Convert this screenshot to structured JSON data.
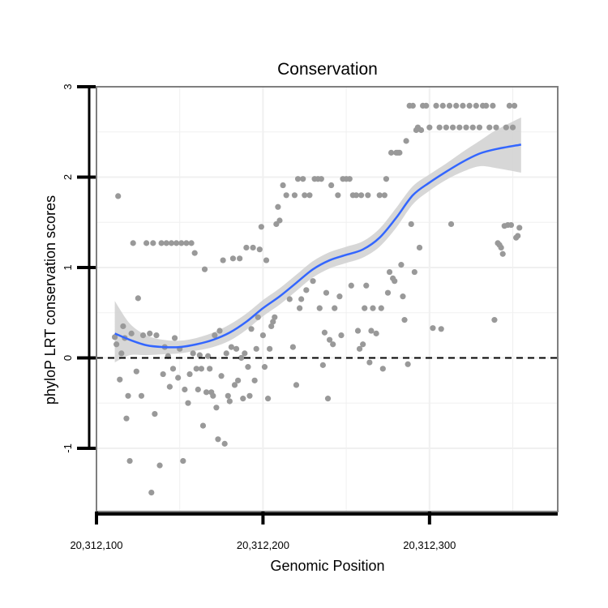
{
  "chart_data": {
    "type": "scatter",
    "title": "Conservation",
    "xlabel": "Genomic Position",
    "ylabel": "phyloP LRT conservation scores",
    "xlim": [
      20312100,
      20312377
    ],
    "ylim": [
      -1.7,
      3.0
    ],
    "x_ticks": [
      20312100,
      20312200,
      20312300
    ],
    "x_tick_labels": [
      "20,312,100",
      "20,312,200",
      "20,312,300"
    ],
    "y_ticks": [
      -1,
      0,
      1,
      2,
      3
    ],
    "y_tick_labels": [
      "-1",
      "0",
      "1",
      "2",
      "3"
    ],
    "reference_line": {
      "y": 0,
      "style": "dashed"
    },
    "grid": true,
    "colors": {
      "points": "#999999",
      "smooth_line": "#3366ff",
      "confidence_band": "#d3d3d3",
      "panel_border": "#7f7f7f",
      "grid": "#f0f0f0"
    },
    "points": [
      [
        20312111,
        0.23
      ],
      [
        20312112,
        0.15
      ],
      [
        20312113,
        1.79
      ],
      [
        20312114,
        -0.24
      ],
      [
        20312115,
        0.05
      ],
      [
        20312116,
        0.35
      ],
      [
        20312117,
        0.22
      ],
      [
        20312118,
        -0.67
      ],
      [
        20312119,
        -0.42
      ],
      [
        20312120,
        -1.14
      ],
      [
        20312121,
        0.27
      ],
      [
        20312122,
        1.27
      ],
      [
        20312124,
        -0.15
      ],
      [
        20312125,
        0.66
      ],
      [
        20312127,
        -0.42
      ],
      [
        20312128,
        0.25
      ],
      [
        20312130,
        1.27
      ],
      [
        20312132,
        0.27
      ],
      [
        20312133,
        -1.49
      ],
      [
        20312134,
        1.27
      ],
      [
        20312135,
        -0.62
      ],
      [
        20312136,
        0.25
      ],
      [
        20312138,
        -1.19
      ],
      [
        20312139,
        1.27
      ],
      [
        20312140,
        -0.18
      ],
      [
        20312141,
        0.12
      ],
      [
        20312142,
        1.27
      ],
      [
        20312143,
        0.02
      ],
      [
        20312144,
        -0.32
      ],
      [
        20312145,
        1.27
      ],
      [
        20312146,
        -0.12
      ],
      [
        20312147,
        0.22
      ],
      [
        20312148,
        1.27
      ],
      [
        20312149,
        -0.22
      ],
      [
        20312150,
        0.1
      ],
      [
        20312151,
        1.27
      ],
      [
        20312152,
        -1.14
      ],
      [
        20312153,
        -0.35
      ],
      [
        20312154,
        1.27
      ],
      [
        20312155,
        -0.5
      ],
      [
        20312156,
        -0.18
      ],
      [
        20312157,
        1.27
      ],
      [
        20312158,
        0.05
      ],
      [
        20312159,
        1.16
      ],
      [
        20312160,
        -0.12
      ],
      [
        20312161,
        -0.35
      ],
      [
        20312162,
        0.03
      ],
      [
        20312163,
        -0.12
      ],
      [
        20312164,
        -0.75
      ],
      [
        20312165,
        0.98
      ],
      [
        20312166,
        -0.38
      ],
      [
        20312167,
        0.02
      ],
      [
        20312168,
        -0.12
      ],
      [
        20312169,
        -0.38
      ],
      [
        20312170,
        -0.42
      ],
      [
        20312171,
        0.25
      ],
      [
        20312172,
        -0.55
      ],
      [
        20312173,
        -0.9
      ],
      [
        20312174,
        0.3
      ],
      [
        20312175,
        -0.2
      ],
      [
        20312176,
        1.08
      ],
      [
        20312177,
        -0.95
      ],
      [
        20312178,
        0.05
      ],
      [
        20312179,
        -0.42
      ],
      [
        20312180,
        -0.48
      ],
      [
        20312181,
        0.12
      ],
      [
        20312182,
        1.1
      ],
      [
        20312183,
        -0.3
      ],
      [
        20312184,
        0.1
      ],
      [
        20312185,
        -0.25
      ],
      [
        20312186,
        1.1
      ],
      [
        20312187,
        0.0
      ],
      [
        20312188,
        -0.45
      ],
      [
        20312189,
        0.05
      ],
      [
        20312190,
        1.22
      ],
      [
        20312191,
        -0.1
      ],
      [
        20312192,
        -0.42
      ],
      [
        20312193,
        0.32
      ],
      [
        20312194,
        1.22
      ],
      [
        20312195,
        -0.25
      ],
      [
        20312196,
        0.1
      ],
      [
        20312197,
        0.45
      ],
      [
        20312198,
        1.2
      ],
      [
        20312199,
        1.45
      ],
      [
        20312200,
        0.25
      ],
      [
        20312201,
        -0.1
      ],
      [
        20312202,
        1.08
      ],
      [
        20312203,
        -0.45
      ],
      [
        20312204,
        0.1
      ],
      [
        20312205,
        0.35
      ],
      [
        20312206,
        0.4
      ],
      [
        20312207,
        0.45
      ],
      [
        20312208,
        1.48
      ],
      [
        20312209,
        1.67
      ],
      [
        20312210,
        1.52
      ],
      [
        20312212,
        1.91
      ],
      [
        20312214,
        1.8
      ],
      [
        20312216,
        0.65
      ],
      [
        20312218,
        0.12
      ],
      [
        20312219,
        1.8
      ],
      [
        20312220,
        -0.3
      ],
      [
        20312221,
        1.98
      ],
      [
        20312222,
        0.55
      ],
      [
        20312223,
        0.65
      ],
      [
        20312224,
        1.98
      ],
      [
        20312225,
        1.8
      ],
      [
        20312226,
        0.75
      ],
      [
        20312228,
        1.8
      ],
      [
        20312230,
        0.85
      ],
      [
        20312231,
        1.98
      ],
      [
        20312233,
        1.98
      ],
      [
        20312234,
        0.55
      ],
      [
        20312235,
        1.98
      ],
      [
        20312236,
        -0.08
      ],
      [
        20312237,
        0.28
      ],
      [
        20312238,
        0.72
      ],
      [
        20312239,
        -0.45
      ],
      [
        20312240,
        0.2
      ],
      [
        20312241,
        1.91
      ],
      [
        20312242,
        0.15
      ],
      [
        20312243,
        0.55
      ],
      [
        20312245,
        1.8
      ],
      [
        20312246,
        0.68
      ],
      [
        20312247,
        0.25
      ],
      [
        20312248,
        1.98
      ],
      [
        20312250,
        1.98
      ],
      [
        20312252,
        1.98
      ],
      [
        20312253,
        0.8
      ],
      [
        20312254,
        1.8
      ],
      [
        20312256,
        1.8
      ],
      [
        20312257,
        0.3
      ],
      [
        20312258,
        0.1
      ],
      [
        20312259,
        1.8
      ],
      [
        20312260,
        0.15
      ],
      [
        20312261,
        0.55
      ],
      [
        20312262,
        0.8
      ],
      [
        20312263,
        1.8
      ],
      [
        20312264,
        -0.05
      ],
      [
        20312265,
        0.3
      ],
      [
        20312266,
        0.55
      ],
      [
        20312268,
        0.27
      ],
      [
        20312270,
        1.8
      ],
      [
        20312271,
        0.55
      ],
      [
        20312272,
        -0.12
      ],
      [
        20312273,
        1.8
      ],
      [
        20312274,
        1.98
      ],
      [
        20312275,
        0.72
      ],
      [
        20312276,
        0.95
      ],
      [
        20312277,
        2.27
      ],
      [
        20312278,
        0.88
      ],
      [
        20312279,
        0.85
      ],
      [
        20312280,
        2.27
      ],
      [
        20312281,
        2.27
      ],
      [
        20312282,
        2.27
      ],
      [
        20312283,
        1.03
      ],
      [
        20312284,
        0.68
      ],
      [
        20312285,
        0.42
      ],
      [
        20312286,
        2.4
      ],
      [
        20312287,
        -0.07
      ],
      [
        20312288,
        2.79
      ],
      [
        20312289,
        1.48
      ],
      [
        20312290,
        2.79
      ],
      [
        20312291,
        0.95
      ],
      [
        20312292,
        2.52
      ],
      [
        20312293,
        2.55
      ],
      [
        20312294,
        1.22
      ],
      [
        20312295,
        2.52
      ],
      [
        20312296,
        2.79
      ],
      [
        20312298,
        2.79
      ],
      [
        20312300,
        2.55
      ],
      [
        20312302,
        0.33
      ],
      [
        20312304,
        2.79
      ],
      [
        20312306,
        2.55
      ],
      [
        20312307,
        0.32
      ],
      [
        20312308,
        2.79
      ],
      [
        20312310,
        2.55
      ],
      [
        20312312,
        2.79
      ],
      [
        20312313,
        1.48
      ],
      [
        20312314,
        2.55
      ],
      [
        20312316,
        2.79
      ],
      [
        20312318,
        2.55
      ],
      [
        20312320,
        2.79
      ],
      [
        20312322,
        2.55
      ],
      [
        20312324,
        2.79
      ],
      [
        20312326,
        2.55
      ],
      [
        20312328,
        2.79
      ],
      [
        20312330,
        2.55
      ],
      [
        20312332,
        2.79
      ],
      [
        20312334,
        2.79
      ],
      [
        20312336,
        2.55
      ],
      [
        20312338,
        2.79
      ],
      [
        20312339,
        0.42
      ],
      [
        20312340,
        2.55
      ],
      [
        20312341,
        1.27
      ],
      [
        20312342,
        1.25
      ],
      [
        20312343,
        1.22
      ],
      [
        20312344,
        1.15
      ],
      [
        20312345,
        1.46
      ],
      [
        20312346,
        2.55
      ],
      [
        20312347,
        1.47
      ],
      [
        20312348,
        2.79
      ],
      [
        20312349,
        1.47
      ],
      [
        20312350,
        2.55
      ],
      [
        20312351,
        2.79
      ],
      [
        20312352,
        1.33
      ],
      [
        20312353,
        1.35
      ],
      [
        20312354,
        1.44
      ]
    ],
    "smooth_line": [
      [
        20312111,
        0.27
      ],
      [
        20312120,
        0.2
      ],
      [
        20312130,
        0.14
      ],
      [
        20312140,
        0.12
      ],
      [
        20312150,
        0.12
      ],
      [
        20312160,
        0.15
      ],
      [
        20312170,
        0.2
      ],
      [
        20312180,
        0.28
      ],
      [
        20312190,
        0.4
      ],
      [
        20312200,
        0.55
      ],
      [
        20312210,
        0.68
      ],
      [
        20312220,
        0.83
      ],
      [
        20312230,
        0.98
      ],
      [
        20312240,
        1.08
      ],
      [
        20312250,
        1.14
      ],
      [
        20312260,
        1.2
      ],
      [
        20312270,
        1.33
      ],
      [
        20312280,
        1.55
      ],
      [
        20312290,
        1.8
      ],
      [
        20312300,
        1.94
      ],
      [
        20312310,
        2.06
      ],
      [
        20312320,
        2.17
      ],
      [
        20312330,
        2.26
      ],
      [
        20312340,
        2.31
      ],
      [
        20312355,
        2.36
      ]
    ],
    "confidence_band": {
      "x": [
        20312111,
        20312120,
        20312130,
        20312140,
        20312150,
        20312160,
        20312170,
        20312180,
        20312190,
        20312200,
        20312210,
        20312220,
        20312230,
        20312240,
        20312250,
        20312260,
        20312270,
        20312280,
        20312290,
        20312300,
        20312310,
        20312320,
        20312330,
        20312340,
        20312355
      ],
      "lower": [
        -0.05,
        0.03,
        0.03,
        0.04,
        0.05,
        0.08,
        0.12,
        0.19,
        0.31,
        0.46,
        0.59,
        0.74,
        0.89,
        0.99,
        1.05,
        1.11,
        1.23,
        1.44,
        1.7,
        1.85,
        1.97,
        2.06,
        2.12,
        2.1,
        2.05
      ],
      "upper": [
        0.63,
        0.38,
        0.25,
        0.2,
        0.19,
        0.22,
        0.28,
        0.37,
        0.49,
        0.64,
        0.77,
        0.92,
        1.07,
        1.17,
        1.23,
        1.29,
        1.43,
        1.66,
        1.9,
        2.03,
        2.15,
        2.28,
        2.4,
        2.52,
        2.66
      ]
    }
  }
}
